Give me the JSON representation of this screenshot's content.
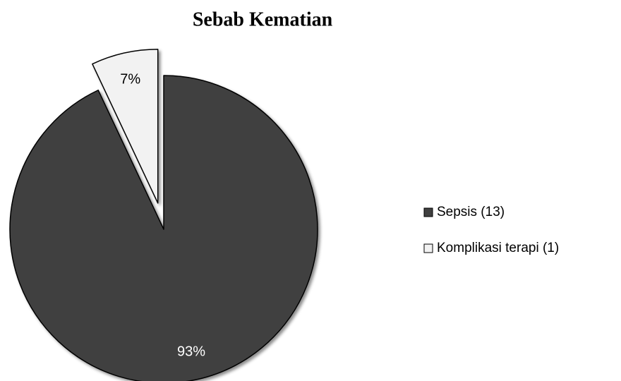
{
  "chart_data": {
    "type": "pie",
    "title": "Sebab Kematian",
    "categories": [
      "Sepsis (13)",
      "Komplikasi terapi (1)"
    ],
    "values": [
      93,
      7
    ],
    "value_labels": [
      "93%",
      "7%"
    ],
    "colors": [
      "#404040",
      "#f2f2f2"
    ],
    "legend": "right"
  }
}
